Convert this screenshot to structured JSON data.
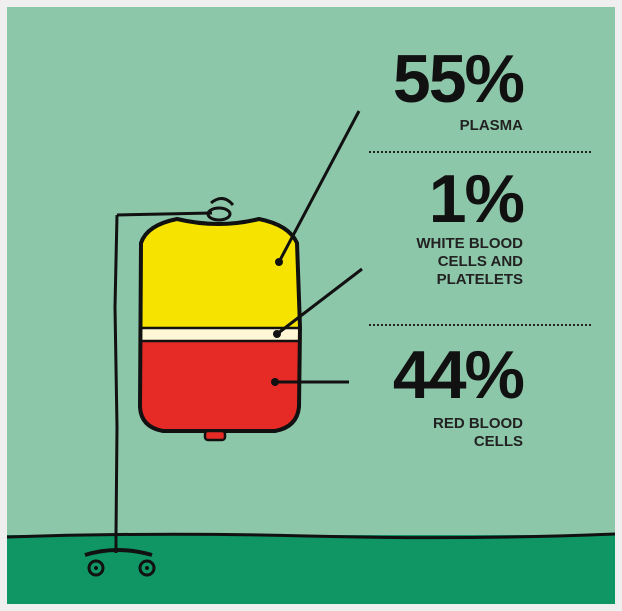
{
  "segments": [
    {
      "key": "plasma",
      "percent": "55%",
      "label": "PLASMA",
      "color": "#f6e400"
    },
    {
      "key": "white",
      "percent": "1%",
      "label_lines": [
        "WHITE BLOOD",
        "CELLS AND",
        "PLATELETS"
      ],
      "color": "#fff7d6"
    },
    {
      "key": "red",
      "percent": "44%",
      "label_lines": [
        "RED BLOOD",
        "CELLS"
      ],
      "color": "#e62a26"
    }
  ],
  "colors": {
    "background": "#8dc7aa",
    "ground": "#109565",
    "outline": "#111111"
  }
}
